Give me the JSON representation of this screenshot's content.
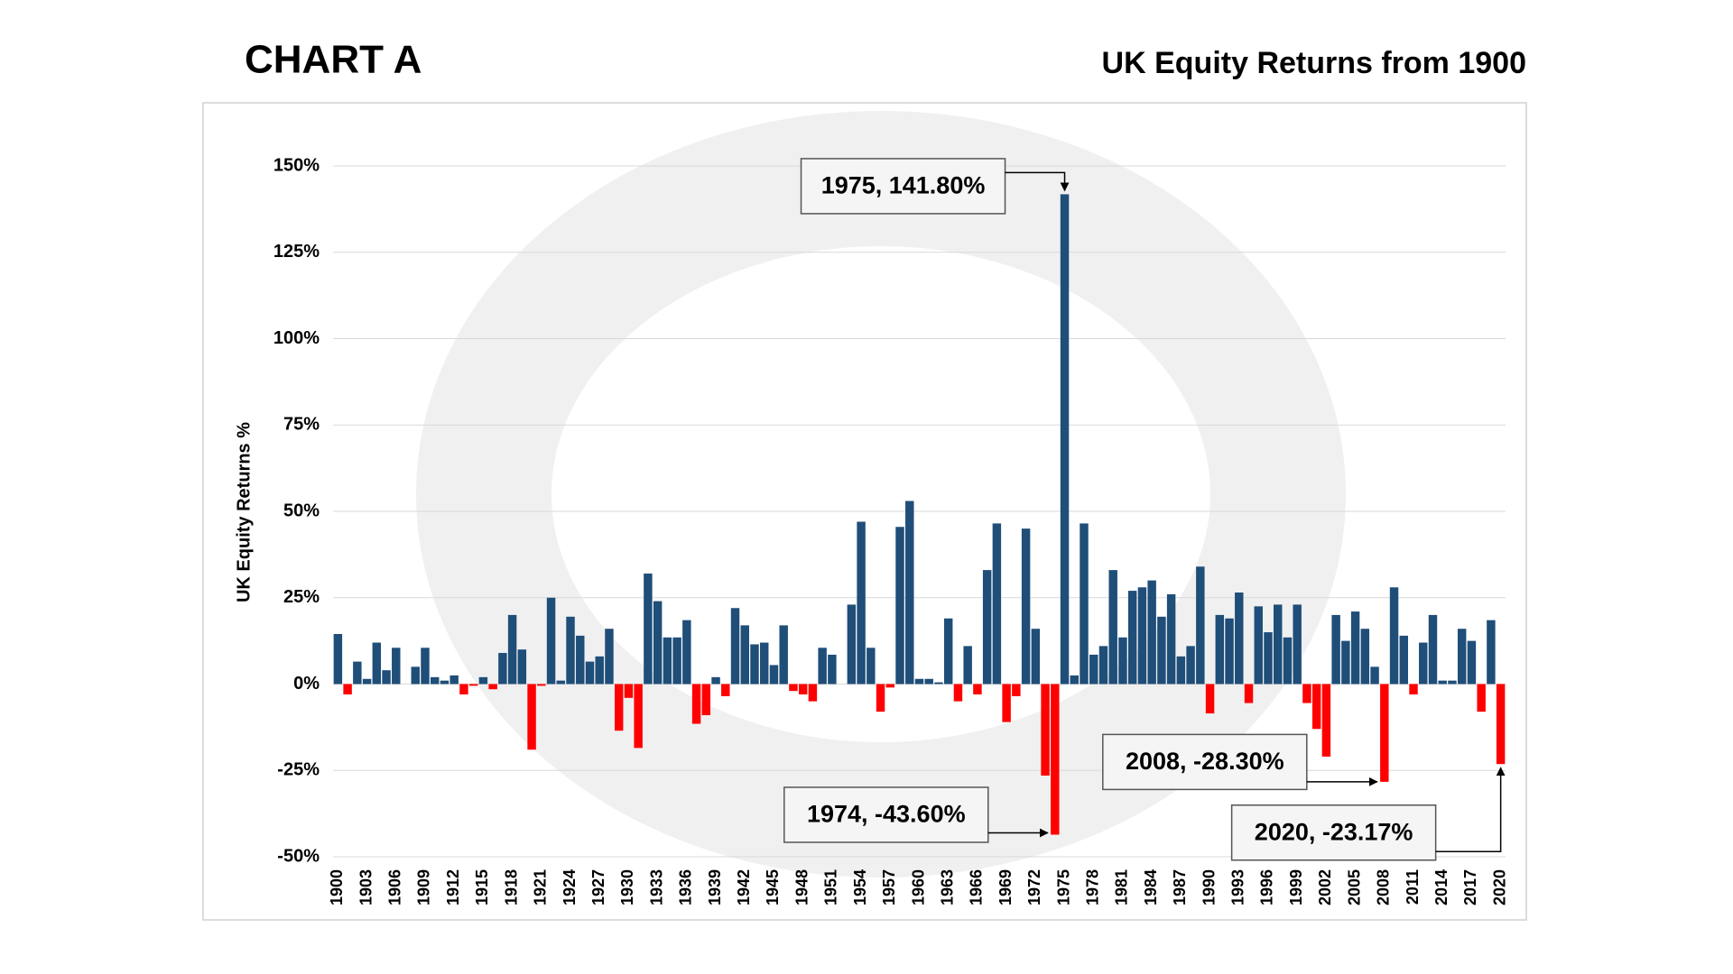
{
  "chart_data": {
    "type": "bar",
    "title": "CHART A",
    "subtitle": "UK Equity Returns from 1900",
    "y_label": "UK Equity Returns %",
    "color": "#1f4e79",
    "negative_color": "#ff0000",
    "grid": true,
    "ylim": [
      -50,
      150
    ],
    "yticks": [
      {
        "value": -50,
        "label": "-50%"
      },
      {
        "value": -25,
        "label": "-25%"
      },
      {
        "value": 0,
        "label": "0%"
      },
      {
        "value": 25,
        "label": "25%"
      },
      {
        "value": 50,
        "label": "50%"
      },
      {
        "value": 75,
        "label": "75%"
      },
      {
        "value": 100,
        "label": "100%"
      },
      {
        "value": 125,
        "label": "125%"
      },
      {
        "value": 150,
        "label": "150%"
      }
    ],
    "categories": [
      "1900",
      null,
      null,
      "1903",
      null,
      null,
      "1906",
      null,
      null,
      "1909",
      null,
      null,
      "1912",
      null,
      null,
      "1915",
      null,
      null,
      "1918",
      null,
      null,
      "1921",
      null,
      null,
      "1924",
      null,
      null,
      "1927",
      null,
      null,
      "1930",
      null,
      null,
      "1933",
      null,
      null,
      "1936",
      null,
      null,
      "1939",
      null,
      null,
      "1942",
      null,
      null,
      "1945",
      null,
      null,
      "1948",
      null,
      null,
      "1951",
      null,
      null,
      "1954",
      null,
      null,
      "1957",
      null,
      null,
      "1960",
      null,
      null,
      "1963",
      null,
      null,
      "1966",
      null,
      null,
      "1969",
      null,
      null,
      "1972",
      null,
      null,
      "1975",
      null,
      null,
      "1978",
      null,
      null,
      "1981",
      null,
      null,
      "1984",
      null,
      null,
      "1987",
      null,
      null,
      "1990",
      null,
      null,
      "1993",
      null,
      null,
      "1996",
      null,
      null,
      "1999",
      null,
      null,
      "2002",
      null,
      null,
      "2005",
      null,
      null,
      "2008",
      null,
      null,
      "2011",
      null,
      null,
      "2014",
      null,
      null,
      "2017",
      null,
      null,
      "2020"
    ],
    "values": [
      14.5,
      -3,
      6.5,
      1.5,
      12,
      4,
      10.5,
      0,
      5,
      10.5,
      2,
      1,
      2.5,
      -3,
      -0.5,
      2,
      -1.5,
      9,
      20,
      10,
      -19,
      -0.5,
      25,
      1,
      19.5,
      14,
      6.5,
      8,
      16,
      -13.5,
      -4,
      -18.5,
      32,
      24,
      13.5,
      13.5,
      18.5,
      -11.5,
      -9,
      2,
      -3.5,
      22,
      17,
      11.5,
      12,
      5.5,
      17,
      -2,
      -3,
      -5,
      10.5,
      8.5,
      0,
      23,
      47,
      10.5,
      -8,
      -1,
      45.5,
      53,
      1.5,
      1.5,
      0.5,
      19,
      -5,
      11,
      -3,
      33,
      46.5,
      -11,
      -3.5,
      45,
      16,
      -26.5,
      -43.6,
      141.8,
      2.5,
      46.5,
      8.5,
      11,
      33,
      13.5,
      27,
      28,
      30,
      19.5,
      26,
      8,
      11,
      34,
      -8.5,
      20,
      19,
      26.5,
      -5.5,
      22.5,
      15,
      23,
      13.5,
      23,
      -5.5,
      -13,
      -21,
      20,
      12.5,
      21,
      16,
      5,
      -28.3,
      28,
      14,
      -3,
      12,
      20,
      1,
      1,
      16,
      12.5,
      -8,
      18.5,
      -23.17
    ],
    "value_labels": [
      null,
      null,
      null,
      null,
      null,
      null,
      null,
      null,
      null,
      null,
      null,
      null,
      null,
      null,
      null,
      null,
      null,
      null,
      null,
      null,
      null,
      null,
      null,
      null,
      null,
      null,
      null,
      null,
      null,
      null,
      null,
      null,
      null,
      null,
      null,
      null,
      null,
      null,
      null,
      null,
      null,
      null,
      null,
      null,
      null,
      null,
      null,
      null,
      null,
      null,
      null,
      null,
      null,
      null,
      null,
      null,
      null,
      null,
      null,
      null,
      null,
      null,
      null,
      null,
      null,
      null,
      null,
      null,
      null,
      null,
      null,
      null,
      null,
      null,
      "1974, -43.60%",
      "1975, 141.80%",
      null,
      null,
      null,
      null,
      null,
      null,
      null,
      null,
      null,
      null,
      null,
      null,
      null,
      null,
      null,
      null,
      null,
      null,
      null,
      null,
      null,
      null,
      null,
      null,
      null,
      null,
      null,
      null,
      null,
      null,
      null,
      null,
      "2008, -28.30%",
      null,
      null,
      null,
      null,
      null,
      null,
      null,
      null,
      null,
      null,
      null,
      "2020, -23.17%"
    ]
  }
}
